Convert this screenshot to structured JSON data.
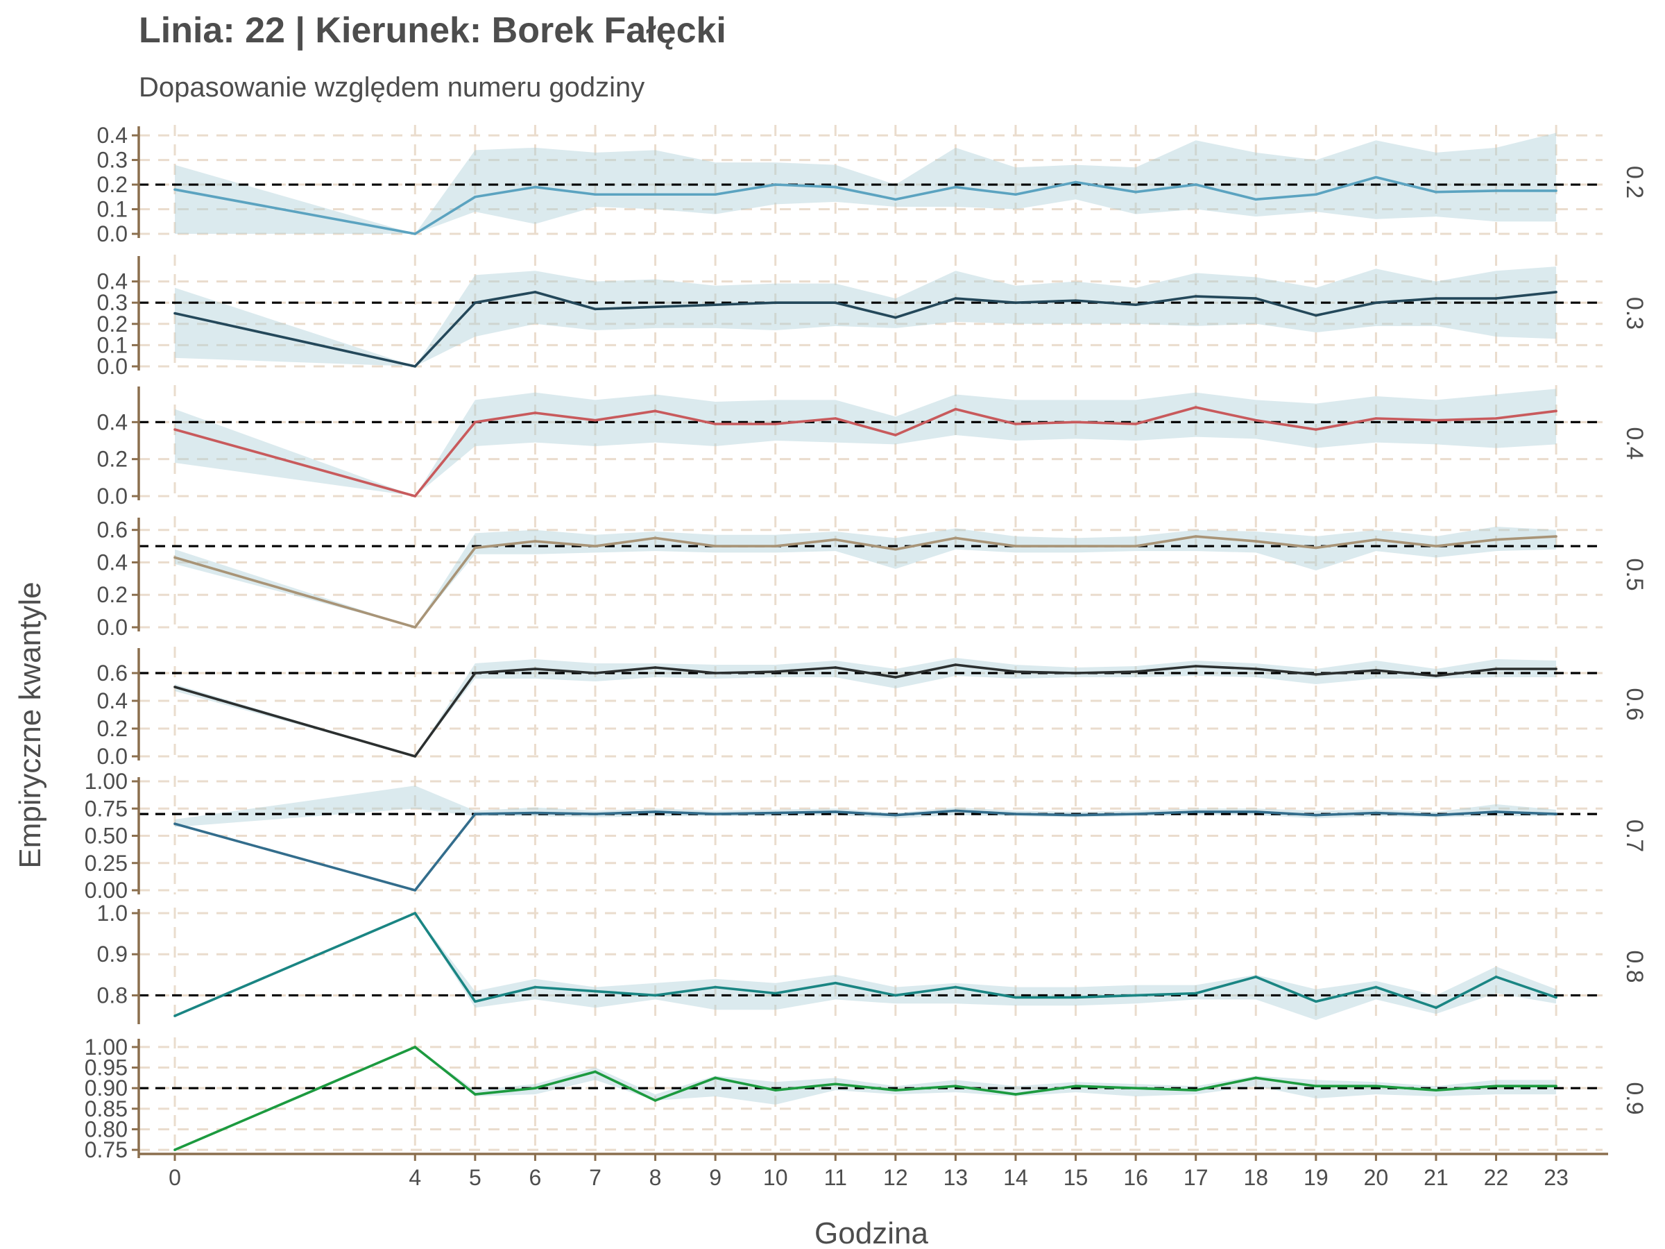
{
  "chart_data": {
    "type": "line",
    "title": "Linia: 22 | Kierunek: Borek Fałęcki",
    "subtitle": "Dopasowanie względem numeru godziny",
    "xlabel": "Godzina",
    "ylabel": "Empiryczne kwantyle",
    "x": [
      0,
      4,
      5,
      6,
      7,
      8,
      9,
      10,
      11,
      12,
      13,
      14,
      15,
      16,
      17,
      18,
      19,
      20,
      21,
      22,
      23
    ],
    "grid": "dashed",
    "reference_line": "dashed at quantile level",
    "panels": [
      {
        "strip": "0.2",
        "level": 0.2,
        "color": "#5ba3c0",
        "ylim": [
          0,
          0.42
        ],
        "yticks": [
          "0.0",
          "0.1",
          "0.2",
          "0.3",
          "0.4"
        ],
        "values": [
          0.18,
          0.0,
          0.15,
          0.19,
          0.16,
          0.16,
          0.16,
          0.2,
          0.19,
          0.14,
          0.19,
          0.16,
          0.21,
          0.17,
          0.2,
          0.14,
          0.16,
          0.23,
          0.17,
          0.175,
          0.175
        ],
        "lower": [
          0.0,
          0.0,
          0.09,
          0.04,
          0.11,
          0.1,
          0.08,
          0.12,
          0.13,
          0.11,
          0.11,
          0.1,
          0.14,
          0.08,
          0.1,
          0.07,
          0.09,
          0.06,
          0.07,
          0.05,
          0.05
        ],
        "upper": [
          0.28,
          0.0,
          0.34,
          0.35,
          0.33,
          0.34,
          0.29,
          0.29,
          0.28,
          0.2,
          0.35,
          0.27,
          0.28,
          0.27,
          0.38,
          0.33,
          0.3,
          0.38,
          0.33,
          0.35,
          0.41
        ]
      },
      {
        "strip": "0.3",
        "level": 0.3,
        "color": "#24485a",
        "ylim": [
          0,
          0.5
        ],
        "yticks": [
          "0.0",
          "0.1",
          "0.2",
          "0.3",
          "0.4"
        ],
        "values": [
          0.25,
          0.0,
          0.3,
          0.35,
          0.27,
          0.28,
          0.29,
          0.3,
          0.3,
          0.23,
          0.32,
          0.3,
          0.31,
          0.29,
          0.33,
          0.32,
          0.24,
          0.3,
          0.32,
          0.32,
          0.35
        ],
        "lower": [
          0.04,
          0.0,
          0.14,
          0.2,
          0.17,
          0.18,
          0.18,
          0.17,
          0.19,
          0.18,
          0.21,
          0.2,
          0.2,
          0.2,
          0.19,
          0.2,
          0.16,
          0.19,
          0.19,
          0.14,
          0.13
        ],
        "upper": [
          0.37,
          0.0,
          0.43,
          0.45,
          0.4,
          0.41,
          0.38,
          0.39,
          0.39,
          0.32,
          0.45,
          0.38,
          0.4,
          0.37,
          0.44,
          0.42,
          0.37,
          0.46,
          0.4,
          0.45,
          0.47
        ]
      },
      {
        "strip": "0.4",
        "level": 0.4,
        "color": "#c85a5c",
        "ylim": [
          0,
          0.57
        ],
        "yticks": [
          "0.0",
          "0.2",
          "0.4"
        ],
        "values": [
          0.36,
          0.0,
          0.4,
          0.45,
          0.41,
          0.46,
          0.39,
          0.39,
          0.42,
          0.33,
          0.47,
          0.39,
          0.4,
          0.39,
          0.48,
          0.41,
          0.36,
          0.42,
          0.41,
          0.42,
          0.46
        ],
        "lower": [
          0.18,
          0.0,
          0.27,
          0.29,
          0.27,
          0.29,
          0.27,
          0.3,
          0.29,
          0.28,
          0.33,
          0.3,
          0.31,
          0.3,
          0.32,
          0.31,
          0.26,
          0.29,
          0.28,
          0.26,
          0.28
        ],
        "upper": [
          0.47,
          0.0,
          0.52,
          0.56,
          0.52,
          0.55,
          0.51,
          0.52,
          0.52,
          0.43,
          0.55,
          0.52,
          0.52,
          0.52,
          0.56,
          0.52,
          0.5,
          0.54,
          0.52,
          0.55,
          0.58
        ]
      },
      {
        "strip": "0.5",
        "level": 0.5,
        "color": "#a89477",
        "ylim": [
          0,
          0.65
        ],
        "yticks": [
          "0.0",
          "0.2",
          "0.4",
          "0.6"
        ],
        "values": [
          0.43,
          0.0,
          0.49,
          0.53,
          0.5,
          0.55,
          0.5,
          0.5,
          0.54,
          0.48,
          0.55,
          0.5,
          0.5,
          0.5,
          0.56,
          0.53,
          0.49,
          0.54,
          0.5,
          0.54,
          0.56
        ],
        "lower": [
          0.39,
          0.0,
          0.45,
          0.45,
          0.46,
          0.47,
          0.46,
          0.46,
          0.47,
          0.36,
          0.48,
          0.46,
          0.46,
          0.47,
          0.47,
          0.46,
          0.35,
          0.47,
          0.43,
          0.47,
          0.48
        ],
        "upper": [
          0.48,
          0.0,
          0.58,
          0.6,
          0.57,
          0.59,
          0.57,
          0.57,
          0.59,
          0.55,
          0.61,
          0.56,
          0.55,
          0.56,
          0.6,
          0.59,
          0.56,
          0.6,
          0.56,
          0.62,
          0.6
        ]
      },
      {
        "strip": "0.6",
        "level": 0.6,
        "color": "#2b2f2f",
        "ylim": [
          0,
          0.75
        ],
        "yticks": [
          "0.0",
          "0.2",
          "0.4",
          "0.6"
        ],
        "values": [
          0.5,
          0.0,
          0.6,
          0.63,
          0.6,
          0.64,
          0.6,
          0.61,
          0.64,
          0.57,
          0.66,
          0.61,
          0.6,
          0.61,
          0.65,
          0.63,
          0.59,
          0.62,
          0.58,
          0.63,
          0.63
        ],
        "lower": [
          0.47,
          0.0,
          0.56,
          0.56,
          0.54,
          0.57,
          0.56,
          0.57,
          0.57,
          0.49,
          0.58,
          0.56,
          0.57,
          0.57,
          0.58,
          0.57,
          0.52,
          0.56,
          0.56,
          0.57,
          0.57
        ],
        "upper": [
          0.52,
          0.0,
          0.67,
          0.7,
          0.67,
          0.67,
          0.66,
          0.66,
          0.69,
          0.63,
          0.71,
          0.66,
          0.64,
          0.65,
          0.69,
          0.67,
          0.63,
          0.69,
          0.63,
          0.7,
          0.69
        ]
      },
      {
        "strip": "0.7",
        "level": 0.7,
        "color": "#336d8c",
        "ylim": [
          0,
          1.0
        ],
        "yticks": [
          "0.00",
          "0.25",
          "0.50",
          "0.75",
          "1.00"
        ],
        "values": [
          0.61,
          0.0,
          0.7,
          0.71,
          0.7,
          0.72,
          0.7,
          0.71,
          0.72,
          0.69,
          0.73,
          0.7,
          0.69,
          0.7,
          0.72,
          0.72,
          0.69,
          0.71,
          0.69,
          0.72,
          0.7
        ],
        "lower": [
          0.58,
          0.75,
          0.68,
          0.68,
          0.67,
          0.68,
          0.68,
          0.68,
          0.69,
          0.66,
          0.69,
          0.68,
          0.67,
          0.68,
          0.69,
          0.69,
          0.66,
          0.68,
          0.67,
          0.68,
          0.68
        ],
        "upper": [
          0.65,
          0.96,
          0.73,
          0.76,
          0.73,
          0.75,
          0.73,
          0.74,
          0.75,
          0.71,
          0.76,
          0.73,
          0.72,
          0.73,
          0.75,
          0.75,
          0.73,
          0.74,
          0.72,
          0.79,
          0.74
        ]
      },
      {
        "strip": "0.8",
        "level": 0.8,
        "color": "#1a8583",
        "ylim": [
          0.74,
          1.0
        ],
        "yticks": [
          "0.8",
          "0.9",
          "1.0"
        ],
        "values": [
          0.75,
          1.0,
          0.785,
          0.82,
          0.81,
          0.8,
          0.82,
          0.805,
          0.83,
          0.8,
          0.82,
          0.795,
          0.795,
          0.8,
          0.805,
          0.845,
          0.785,
          0.82,
          0.77,
          0.845,
          0.795
        ],
        "lower": [
          0.75,
          1.0,
          0.77,
          0.79,
          0.77,
          0.79,
          0.765,
          0.765,
          0.79,
          0.78,
          0.78,
          0.775,
          0.775,
          0.78,
          0.79,
          0.79,
          0.74,
          0.79,
          0.755,
          0.805,
          0.78
        ],
        "upper": [
          0.75,
          1.0,
          0.81,
          0.84,
          0.82,
          0.83,
          0.84,
          0.83,
          0.85,
          0.82,
          0.83,
          0.82,
          0.82,
          0.825,
          0.825,
          0.85,
          0.815,
          0.835,
          0.8,
          0.87,
          0.815
        ]
      },
      {
        "strip": "0.9",
        "level": 0.9,
        "color": "#1c9a3f",
        "ylim": [
          0.74,
          1.01
        ],
        "yticks": [
          "0.75",
          "0.80",
          "0.85",
          "0.90",
          "0.95",
          "1.00"
        ],
        "values": [
          0.75,
          1.0,
          0.885,
          0.9,
          0.94,
          0.87,
          0.925,
          0.895,
          0.91,
          0.895,
          0.905,
          0.885,
          0.905,
          0.9,
          0.895,
          0.925,
          0.905,
          0.905,
          0.895,
          0.905,
          0.905
        ],
        "lower": [
          0.75,
          1.0,
          0.88,
          0.885,
          0.92,
          0.87,
          0.88,
          0.86,
          0.895,
          0.885,
          0.89,
          0.88,
          0.89,
          0.88,
          0.885,
          0.905,
          0.875,
          0.885,
          0.88,
          0.885,
          0.885
        ],
        "upper": [
          0.75,
          1.0,
          0.895,
          0.91,
          0.95,
          0.885,
          0.93,
          0.915,
          0.925,
          0.905,
          0.92,
          0.905,
          0.915,
          0.91,
          0.905,
          0.93,
          0.92,
          0.915,
          0.905,
          0.92,
          0.92
        ]
      }
    ],
    "colors": {
      "ribbon": "#a9ccd6",
      "axis": "#8b6f4e",
      "grid": "#eadccd",
      "reference": "#000000"
    }
  }
}
